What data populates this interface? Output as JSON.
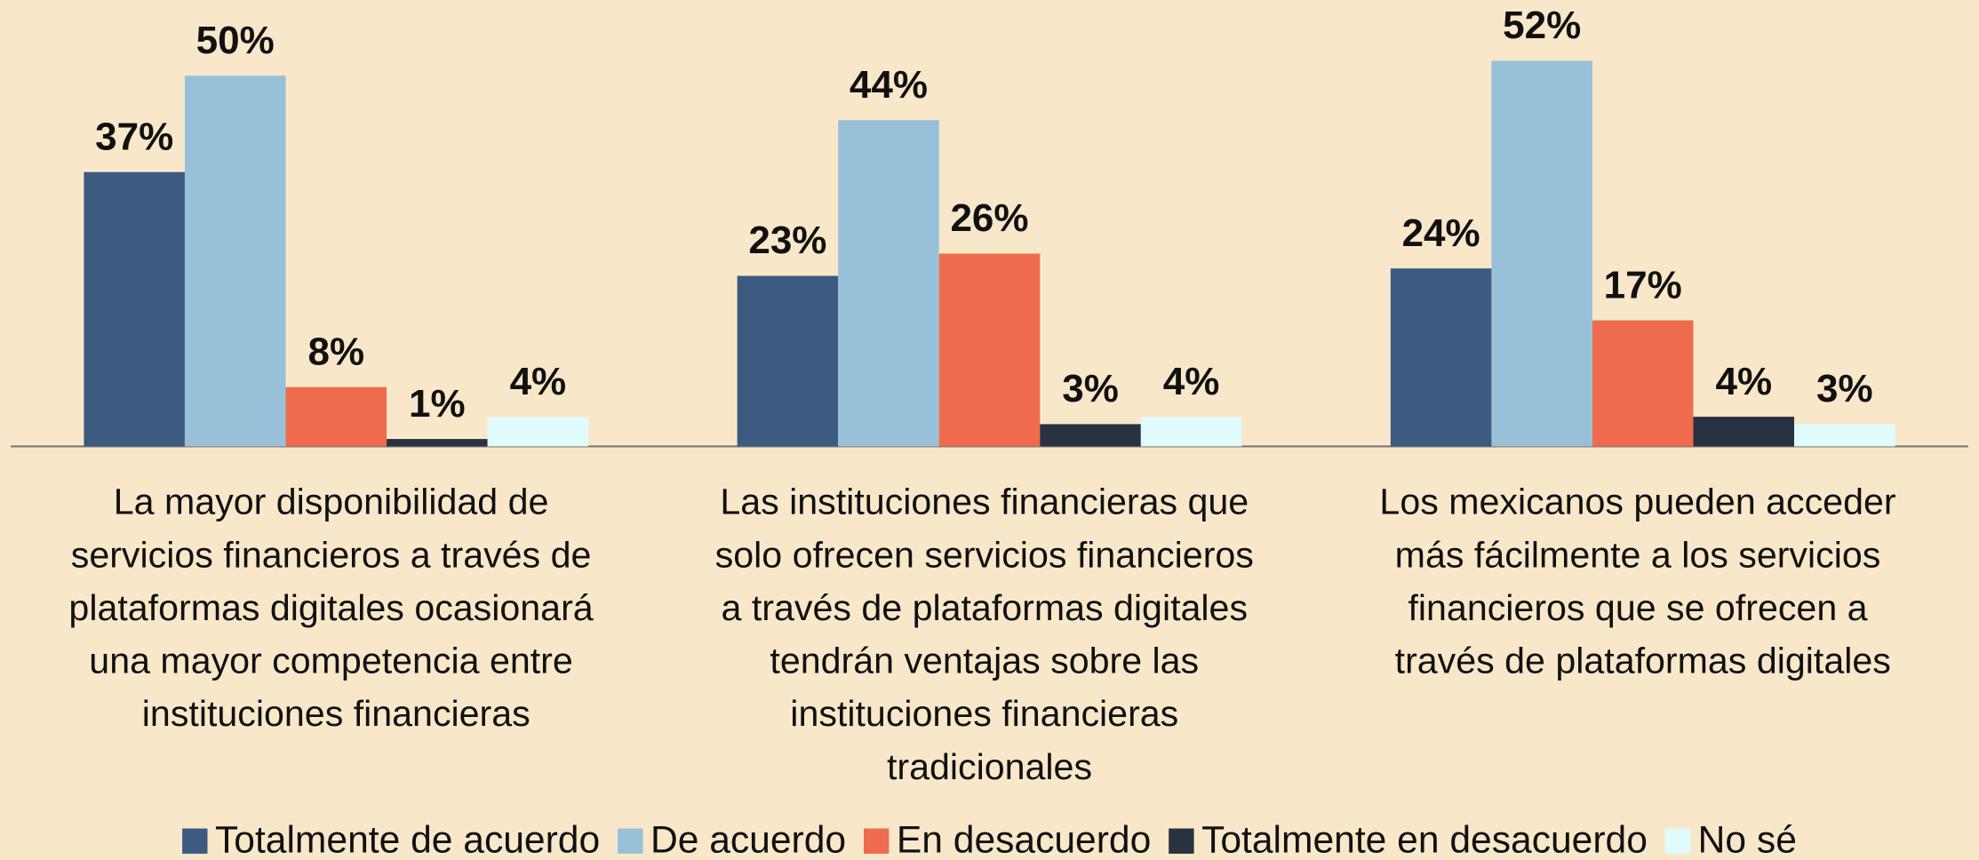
{
  "chart_data": {
    "type": "bar",
    "categories": [
      "La mayor disponibilidad de\nservicios financieros a través de\nplataformas digitales ocasionará\nuna mayor competencia entre\ninstituciones financieras",
      "Las instituciones financieras que\nsolo ofrecen servicios financieros\na través de plataformas digitales\ntendrán ventajas sobre las\ninstituciones financieras\ntradicionales",
      "Los mexicanos pueden acceder\nmás fácilmente a los servicios\nfinancieros que se ofrecen a\ntravés de plataformas digitales"
    ],
    "series": [
      {
        "name": "Totalmente de acuerdo",
        "color": "#3d5a80",
        "values": [
          37,
          23,
          24
        ],
        "value_labels": [
          "37%",
          "23%",
          "24%"
        ]
      },
      {
        "name": "De acuerdo",
        "color": "#98c1d9",
        "values": [
          50,
          44,
          52
        ],
        "value_labels": [
          "50%",
          "44%",
          "52%"
        ]
      },
      {
        "name": "En desacuerdo",
        "color": "#ee6c4d",
        "values": [
          8,
          26,
          17
        ],
        "value_labels": [
          "8%",
          "26%",
          "17%"
        ]
      },
      {
        "name": "Totalmente en desacuerdo",
        "color": "#293241",
        "values": [
          1,
          3,
          4
        ],
        "value_labels": [
          "1%",
          "3%",
          "4%"
        ]
      },
      {
        "name": "No sé",
        "color": "#e0fbfc",
        "values": [
          4,
          4,
          3
        ],
        "value_labels": [
          "4%",
          "4%",
          "3%"
        ]
      }
    ],
    "legend": "bottom"
  }
}
